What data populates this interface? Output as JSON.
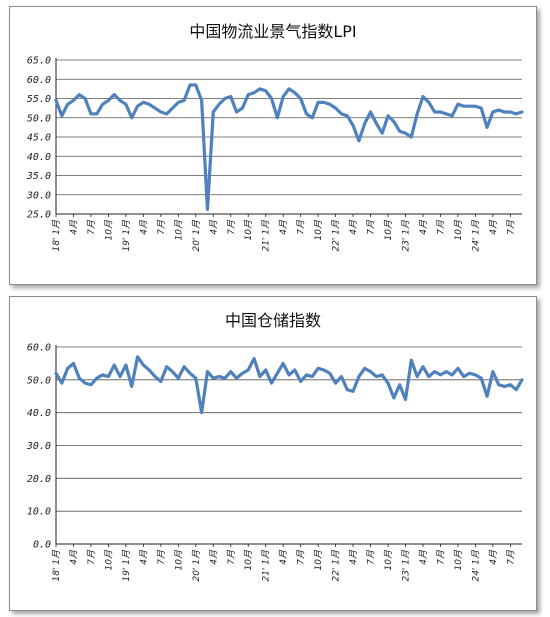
{
  "chart_data": [
    {
      "type": "line",
      "title": "中国物流业景气指数LPI",
      "ylim": [
        25,
        65
      ],
      "yticks": [
        "25.0",
        "30.0",
        "35.0",
        "40.0",
        "45.0",
        "50.0",
        "55.0",
        "60.0",
        "65.0"
      ],
      "xlabels": [
        "18' 1月",
        "4月",
        "7月",
        "10月",
        "19' 1月",
        "4月",
        "7月",
        "10月",
        "20' 1月",
        "4月",
        "7月",
        "10月",
        "21' 1月",
        "4月",
        "7月",
        "10月",
        "22' 1月",
        "4月",
        "7月",
        "10月",
        "23' 1月",
        "4月",
        "7月",
        "10月",
        "24' 1月",
        "4月",
        "7月"
      ],
      "grid": true,
      "line_color": "#4f81bd",
      "series": [
        {
          "values": [
            54.5,
            50.5,
            53.5,
            54.5,
            56.0,
            55.0,
            51.0,
            51.0,
            53.5,
            54.5,
            56.0,
            54.5,
            53.5,
            50.0,
            53.0,
            54.0,
            53.5,
            52.5,
            51.5,
            51.0,
            52.5,
            54.0,
            54.5,
            58.5,
            58.5,
            54.5,
            26.2,
            51.5,
            53.5,
            55.0,
            55.5,
            51.5,
            52.5,
            56.0,
            56.5,
            57.5,
            57.0,
            55.0,
            50.0,
            55.5,
            57.5,
            56.5,
            55.0,
            51.0,
            50.0,
            54.0,
            54.0,
            53.5,
            52.5,
            51.0,
            50.5,
            48.0,
            44.0,
            48.5,
            51.5,
            48.5,
            46.0,
            50.5,
            49.0,
            46.5,
            46.0,
            45.0,
            51.0,
            55.5,
            54.0,
            51.5,
            51.5,
            51.0,
            50.5,
            53.5,
            53.0,
            53.0,
            53.0,
            52.5,
            47.5,
            51.5,
            52.0,
            51.5,
            51.5,
            51.0,
            51.5
          ]
        }
      ]
    },
    {
      "type": "line",
      "title": "中国仓储指数",
      "ylim": [
        0,
        60
      ],
      "yticks": [
        "0.0",
        "10.0",
        "20.0",
        "30.0",
        "40.0",
        "50.0",
        "60.0"
      ],
      "xlabels": [
        "18' 1月",
        "4月",
        "7月",
        "10月",
        "19' 1月",
        "4月",
        "7月",
        "10月",
        "20' 1月",
        "4月",
        "7月",
        "10月",
        "21' 1月",
        "4月",
        "7月",
        "10月",
        "22' 1月",
        "4月",
        "7月",
        "10月",
        "23' 1月",
        "4月",
        "7月",
        "10月",
        "24' 1月",
        "4月",
        "7月"
      ],
      "grid": true,
      "line_color": "#4f81bd",
      "series": [
        {
          "values": [
            52.0,
            49.0,
            53.5,
            55.0,
            50.5,
            49.0,
            48.5,
            50.5,
            51.5,
            51.0,
            54.5,
            51.0,
            54.5,
            48.0,
            57.0,
            54.5,
            53.0,
            51.0,
            49.5,
            54.0,
            52.5,
            50.5,
            54.0,
            52.0,
            50.5,
            40.0,
            52.5,
            50.5,
            51.0,
            50.5,
            52.5,
            50.5,
            52.0,
            53.0,
            56.5,
            51.0,
            53.0,
            49.0,
            52.0,
            55.0,
            51.5,
            53.0,
            49.5,
            51.5,
            51.0,
            53.5,
            53.0,
            52.0,
            49.0,
            51.0,
            47.0,
            46.5,
            51.0,
            53.5,
            52.5,
            51.0,
            51.5,
            49.0,
            44.5,
            48.5,
            44.0,
            56.0,
            51.0,
            54.0,
            51.0,
            52.5,
            51.5,
            52.5,
            51.5,
            53.5,
            51.0,
            52.0,
            51.5,
            50.5,
            45.0,
            52.5,
            48.5,
            48.0,
            48.5,
            47.0,
            50.0
          ]
        }
      ]
    }
  ]
}
